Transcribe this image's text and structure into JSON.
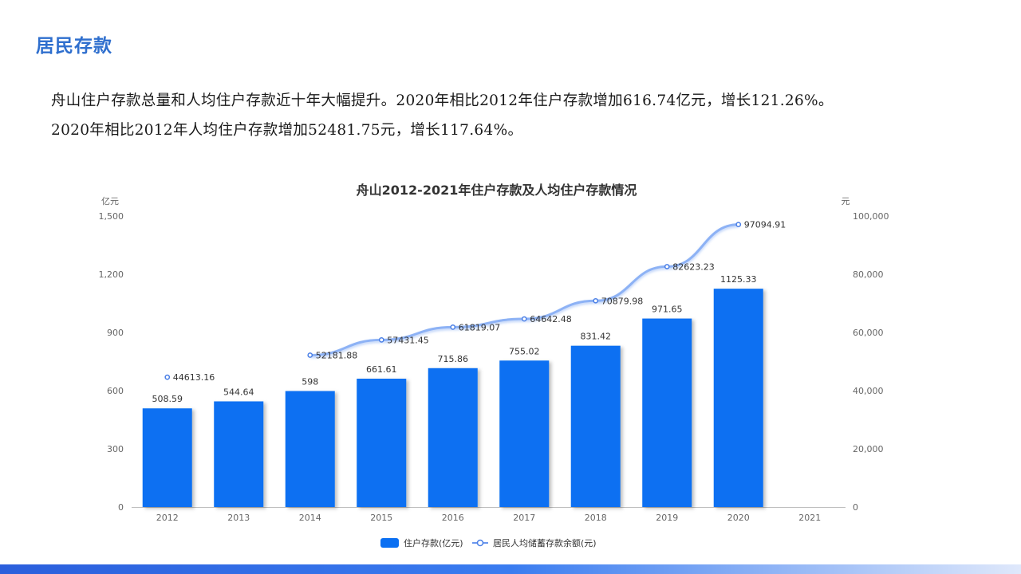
{
  "page": {
    "heading": "居民存款",
    "paragraph_line1": "舟山住户存款总量和人均住户存款近十年大幅提升。2020年相比2012年住户存款增加616.74亿元，增长121.26%。",
    "paragraph_line2": "2020年相比2012年人均住户存款增加52481.75元，增长117.64%。"
  },
  "chart_data": {
    "type": "bar+line",
    "title": "舟山2012-2021年住户存款及人均住户存款情况",
    "categories": [
      "2012",
      "2013",
      "2014",
      "2015",
      "2016",
      "2017",
      "2018",
      "2019",
      "2020",
      "2021"
    ],
    "y_left": {
      "unit": "亿元",
      "min": 0,
      "max": 1500,
      "ticks": [
        0,
        300,
        600,
        900,
        1200,
        1500
      ],
      "tick_labels": [
        "0",
        "300",
        "600",
        "900",
        "1,200",
        "1,500"
      ]
    },
    "y_right": {
      "unit": "元",
      "min": 0,
      "max": 100000,
      "ticks": [
        0,
        20000,
        40000,
        60000,
        80000,
        100000
      ],
      "tick_labels": [
        "0",
        "20,000",
        "40,000",
        "60,000",
        "80,000",
        "100,000"
      ]
    },
    "series": [
      {
        "name": "住户存款(亿元)",
        "type": "bar",
        "axis": "left",
        "color": "#0a6ff2",
        "values": [
          508.59,
          544.64,
          598,
          661.61,
          715.86,
          755.02,
          831.42,
          971.65,
          1125.33,
          null
        ],
        "labels": [
          "508.59",
          "544.64",
          "598",
          "661.61",
          "715.86",
          "755.02",
          "831.42",
          "971.65",
          "1125.33",
          ""
        ]
      },
      {
        "name": "居民人均储蓄存款余额(元)",
        "type": "line",
        "axis": "right",
        "color": "#5b8ff0",
        "values": [
          44613.16,
          null,
          52181.88,
          57431.45,
          61819.07,
          64642.48,
          70879.98,
          82623.23,
          97094.91,
          null
        ],
        "labels": [
          "44613.16",
          "",
          "52181.88",
          "57431.45",
          "61819.07",
          "64642.48",
          "70879.98",
          "82623.23",
          "97094.91",
          ""
        ]
      }
    ],
    "legend_position": "bottom-center",
    "grid": false
  }
}
